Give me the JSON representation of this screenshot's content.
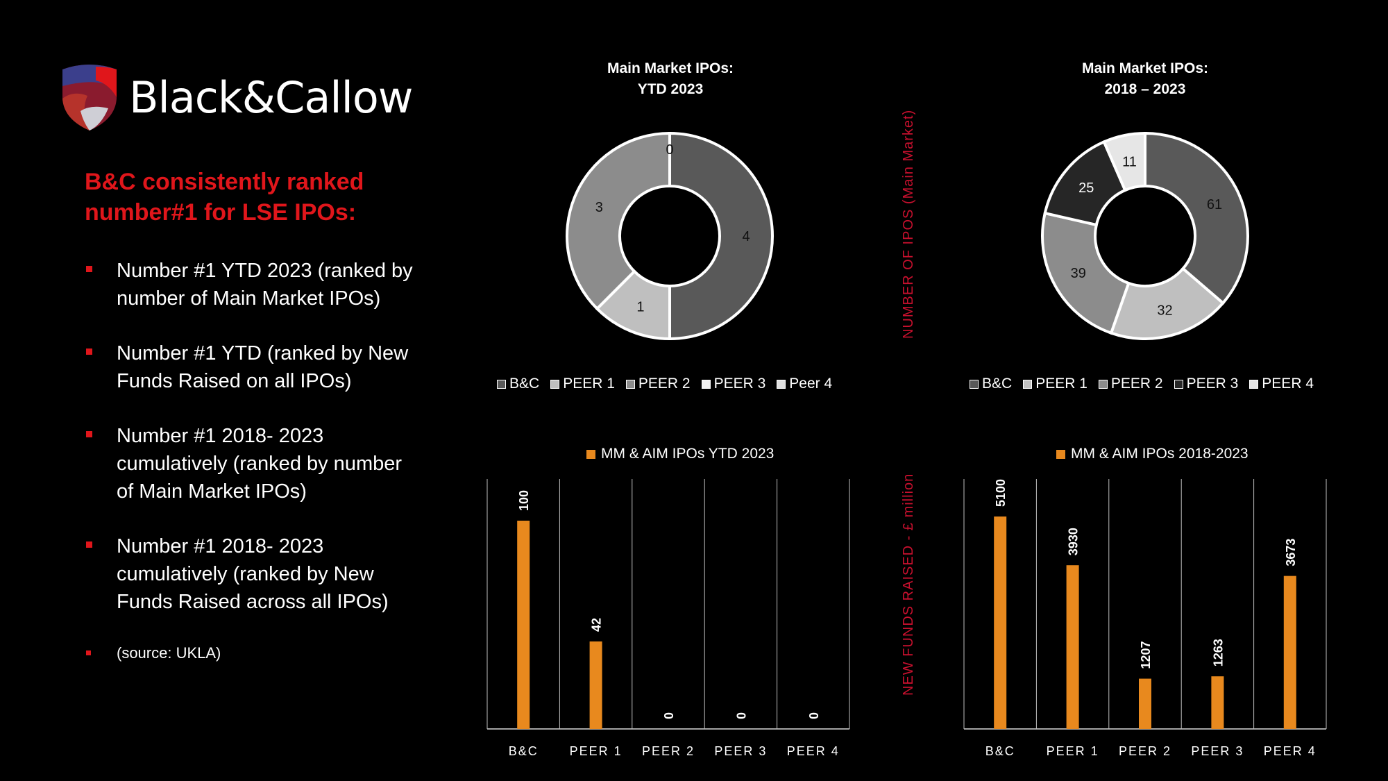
{
  "logo": {
    "text": "Black&Callow"
  },
  "headline": "B&C consistently ranked number#1 for LSE IPOs:",
  "bullets": [
    "Number #1 YTD 2023 (ranked by number of Main Market IPOs)",
    "Number #1 YTD (ranked by New Funds Raised on all IPOs)",
    "Number #1 2018- 2023 cumulatively (ranked by number of Main Market IPOs)",
    "Number #1 2018- 2023 cumulatively (ranked by New Funds Raised across all IPOs)",
    "(source: UKLA)"
  ],
  "axis_labels": {
    "donut_y": "NUMBER OF IPOS (Main Market)",
    "bar_y": "NEW FUNDS RAISED - £ million"
  },
  "colors": {
    "accent_red": "#e0161b",
    "bar_orange": "#e8891e"
  },
  "chart_data": [
    {
      "type": "pie",
      "title_line1": "Main Market IPOs:",
      "title_line2": "YTD 2023",
      "categories": [
        "B&C",
        "PEER 1",
        "PEER 2",
        "PEER 3",
        "Peer 4"
      ],
      "values": [
        4,
        1,
        3,
        0,
        0
      ],
      "slice_colors": [
        "#595959",
        "#bfbfbf",
        "#8c8c8c",
        "#f2f2f2",
        "#e0e0e0"
      ],
      "legend_position": "bottom"
    },
    {
      "type": "pie",
      "title_line1": "Main Market IPOs:",
      "title_line2": "2018 – 2023",
      "categories": [
        "B&C",
        "PEER 1",
        "PEER 2",
        "PEER 3",
        "PEER 4"
      ],
      "values": [
        61,
        32,
        39,
        25,
        11
      ],
      "slice_colors": [
        "#595959",
        "#bfbfbf",
        "#8c8c8c",
        "#262626",
        "#e6e6e6"
      ],
      "legend_position": "bottom"
    },
    {
      "type": "bar",
      "legend": "MM & AIM IPOs YTD 2023",
      "categories": [
        "B&C",
        "PEER 1",
        "PEER 2",
        "PEER 3",
        "PEER 4"
      ],
      "values": [
        100,
        42,
        0,
        0,
        0
      ],
      "ylim": [
        0,
        120
      ]
    },
    {
      "type": "bar",
      "legend": "MM & AIM IPOs 2018-2023",
      "categories": [
        "B&C",
        "PEER 1",
        "PEER 2",
        "PEER 3",
        "PEER 4"
      ],
      "values": [
        5100,
        3930,
        1207,
        1263,
        3673
      ],
      "ylim": [
        0,
        6000
      ]
    }
  ]
}
